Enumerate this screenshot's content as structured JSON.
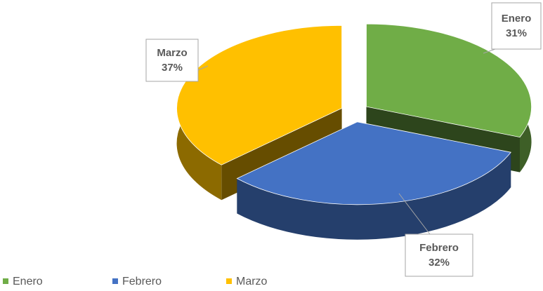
{
  "chart_data": {
    "type": "pie",
    "categories": [
      "Enero",
      "Febrero",
      "Marzo"
    ],
    "values": [
      31,
      32,
      37
    ],
    "value_labels": [
      "31%",
      "32%",
      "37%"
    ],
    "colors": [
      "#70ad47",
      "#4472c4",
      "#ffc000"
    ],
    "three_d": true,
    "exploded": true,
    "legend": "bottom-left"
  }
}
